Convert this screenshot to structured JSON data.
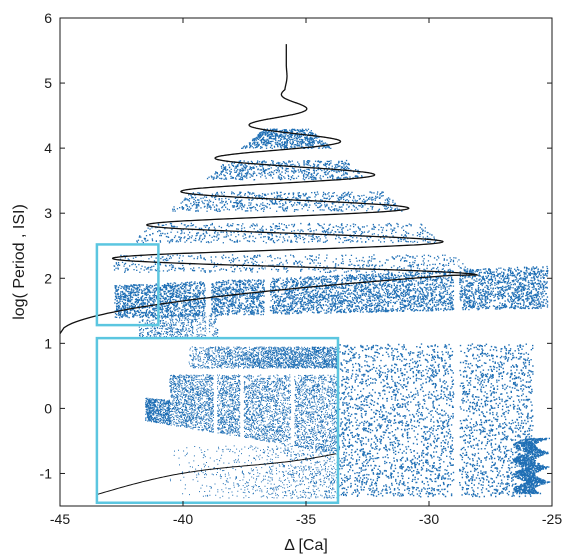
{
  "chart_data": {
    "type": "scatter",
    "title": "",
    "xlabel": "Δ [Ca]",
    "ylabel": "log( Period , ISI)",
    "xlim": [
      -45,
      -25
    ],
    "ylim": [
      -1.5,
      6
    ],
    "xticks": [
      -45,
      -40,
      -35,
      -30,
      -25
    ],
    "yticks": [
      -1,
      0,
      1,
      2,
      3,
      4,
      5,
      6
    ],
    "grid": false,
    "legend": "none",
    "colors": {
      "scatter": "#1f6fb5",
      "curve": "#111111",
      "inset_frame": "#5bc6e0"
    },
    "series": [
      {
        "kind": "scatter",
        "points_description_free": true,
        "band_main": {
          "x_start": -42.8,
          "x_end": -25.2,
          "y_low_at_start": 1.4,
          "y_low_at_end": 1.55,
          "y_high_at_start": 1.9,
          "y_high_at_end": 2.2
        },
        "band_chaos": {
          "x_start": -38.5,
          "x_end": -25.8,
          "y_low": -1.35,
          "y_high": 1.0
        },
        "gaps_x": [
          -39.0,
          -36.6,
          -28.9
        ]
      },
      {
        "kind": "line",
        "spiral_center": [
          -35.8,
          5.0
        ],
        "x_tail_start": -45,
        "y_tail_start": 1.15,
        "x_turn": -28.9,
        "y_turn": 2.05,
        "x_top": -35.8,
        "y_top": 5.6
      }
    ],
    "inset": {
      "source_x": [
        -43.5,
        -41.0
      ],
      "source_y": [
        1.28,
        2.52
      ],
      "target_x": [
        -43.5,
        -33.7
      ],
      "target_y": [
        -1.45,
        1.08
      ]
    }
  }
}
